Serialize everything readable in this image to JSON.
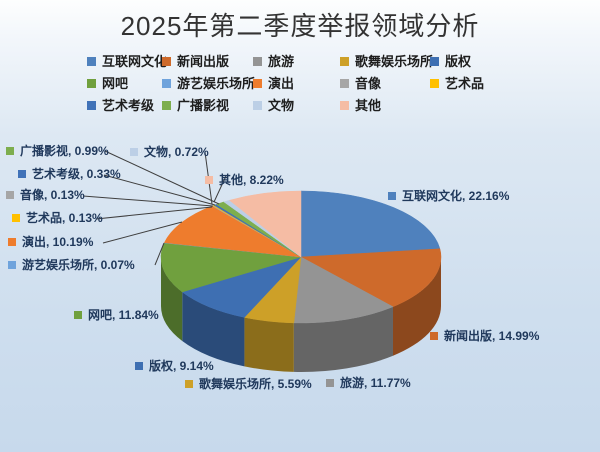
{
  "title": "2025年第二季度举报领域分析",
  "chart_data": {
    "type": "pie",
    "style": "3d",
    "title": "2025年第二季度举报领域分析",
    "unit": "%",
    "legend_position": "top",
    "data_labels": "outside, format: name, value%",
    "series": [
      {
        "label": "互联网文化",
        "value": 22.16,
        "color": "#4F81BD"
      },
      {
        "label": "新闻出版",
        "value": 14.99,
        "color": "#CE6A2B"
      },
      {
        "label": "旅游",
        "value": 11.77,
        "color": "#949494"
      },
      {
        "label": "歌舞娱乐场所",
        "value": 5.59,
        "color": "#CDA028"
      },
      {
        "label": "版权",
        "value": 9.14,
        "color": "#3E6FB2"
      },
      {
        "label": "网吧",
        "value": 11.84,
        "color": "#70A03E"
      },
      {
        "label": "游艺娱乐场所",
        "value": 0.07,
        "color": "#6FA3DC"
      },
      {
        "label": "演出",
        "value": 10.19,
        "color": "#EE7C2D"
      },
      {
        "label": "音像",
        "value": 0.13,
        "color": "#A6A6A6"
      },
      {
        "label": "艺术品",
        "value": 0.13,
        "color": "#FFC000"
      },
      {
        "label": "艺术考级",
        "value": 0.33,
        "color": "#4072B8"
      },
      {
        "label": "广播影视",
        "value": 0.99,
        "color": "#7DAE4E"
      },
      {
        "label": "文物",
        "value": 0.72,
        "color": "#BCCFE6"
      },
      {
        "label": "其他",
        "value": 8.22,
        "color": "#F5BCA4"
      }
    ]
  }
}
